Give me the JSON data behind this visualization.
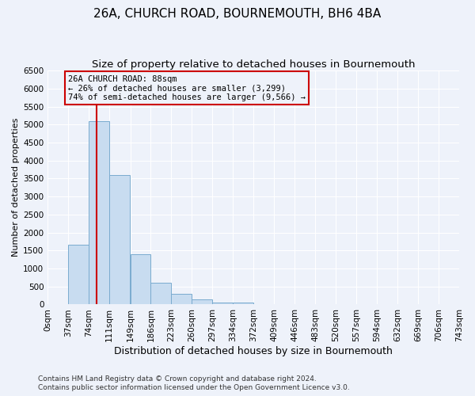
{
  "title": "26A, CHURCH ROAD, BOURNEMOUTH, BH6 4BA",
  "subtitle": "Size of property relative to detached houses in Bournemouth",
  "xlabel": "Distribution of detached houses by size in Bournemouth",
  "ylabel": "Number of detached properties",
  "footer_line1": "Contains HM Land Registry data © Crown copyright and database right 2024.",
  "footer_line2": "Contains public sector information licensed under the Open Government Licence v3.0.",
  "bin_edges": [
    0,
    37,
    74,
    111,
    149,
    186,
    223,
    260,
    297,
    334,
    372,
    409,
    446,
    483,
    520,
    557,
    594,
    632,
    669,
    706,
    743
  ],
  "bin_labels": [
    "0sqm",
    "37sqm",
    "74sqm",
    "111sqm",
    "149sqm",
    "186sqm",
    "223sqm",
    "260sqm",
    "297sqm",
    "334sqm",
    "372sqm",
    "409sqm",
    "446sqm",
    "483sqm",
    "520sqm",
    "557sqm",
    "594sqm",
    "632sqm",
    "669sqm",
    "706sqm",
    "743sqm"
  ],
  "bar_heights": [
    0,
    1650,
    5100,
    3600,
    1400,
    600,
    300,
    150,
    50,
    50,
    0,
    0,
    0,
    0,
    0,
    0,
    0,
    0,
    0,
    0
  ],
  "bar_color": "#c8dcf0",
  "bar_edge_color": "#7aabcf",
  "property_size": 88,
  "vline_color": "#cc0000",
  "annotation_text_line1": "26A CHURCH ROAD: 88sqm",
  "annotation_text_line2": "← 26% of detached houses are smaller (3,299)",
  "annotation_text_line3": "74% of semi-detached houses are larger (9,566) →",
  "annotation_box_color": "#cc0000",
  "ylim": [
    0,
    6500
  ],
  "yticks": [
    0,
    500,
    1000,
    1500,
    2000,
    2500,
    3000,
    3500,
    4000,
    4500,
    5000,
    5500,
    6000,
    6500
  ],
  "bg_color": "#eef2fa",
  "grid_color": "#ffffff",
  "title_fontsize": 11,
  "subtitle_fontsize": 9.5,
  "xlabel_fontsize": 9,
  "ylabel_fontsize": 8,
  "tick_fontsize": 7.5,
  "footer_fontsize": 6.5
}
